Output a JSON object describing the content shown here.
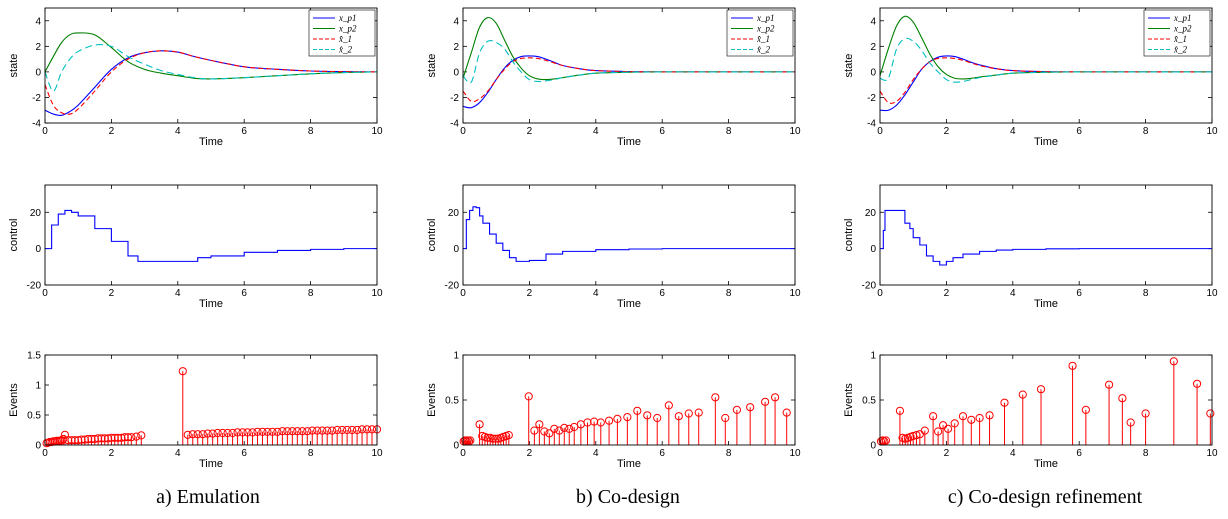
{
  "colors": {
    "xp1": "#0000ff",
    "xp2": "#007f00",
    "xhat1": "#ff0000",
    "xhat2": "#00bfbf",
    "events": "#ff0000",
    "control": "#0000ff"
  },
  "panels": [
    {
      "caption": "a) Emulation"
    },
    {
      "caption": "b) Co-design"
    },
    {
      "caption": "c) Co-design refinement"
    }
  ],
  "chart_data": [
    {
      "type": "line",
      "xlabel": "Time",
      "ylabel": "state",
      "xlim": [
        0,
        10
      ],
      "ylim": [
        -4,
        5
      ],
      "xticks": [
        0,
        2,
        4,
        6,
        8,
        10
      ],
      "yticks": [
        -4,
        -2,
        0,
        2,
        4
      ],
      "legend": [
        "x_p1",
        "x_p2",
        "x̂_1",
        "x̂_2"
      ],
      "legend_position": "top-right",
      "x": [
        0,
        0.25,
        0.5,
        0.75,
        1,
        1.5,
        2,
        2.5,
        3,
        3.5,
        4,
        4.5,
        5,
        6,
        7,
        8,
        9,
        10
      ],
      "series": [
        {
          "name": "x_p1",
          "values": [
            -3,
            -3.3,
            -3.4,
            -3.1,
            -2.6,
            -1.2,
            0.2,
            1.1,
            1.5,
            1.65,
            1.55,
            1.2,
            0.9,
            0.4,
            0.2,
            0.07,
            0.02,
            0
          ]
        },
        {
          "name": "x_p2",
          "values": [
            0,
            1.2,
            2.3,
            2.9,
            3.05,
            2.9,
            1.9,
            0.8,
            0.2,
            -0.1,
            -0.3,
            -0.5,
            -0.55,
            -0.45,
            -0.3,
            -0.15,
            -0.05,
            0
          ]
        },
        {
          "name": "x̂_1",
          "values": [
            -1,
            -2.6,
            -3.2,
            -3.3,
            -2.9,
            -1.5,
            0,
            1,
            1.5,
            1.65,
            1.55,
            1.2,
            0.9,
            0.4,
            0.2,
            0.07,
            0.02,
            0
          ]
        },
        {
          "name": "x̂_2",
          "values": [
            0,
            -1.5,
            0,
            1,
            1.6,
            2.1,
            2,
            1.2,
            0.6,
            0.1,
            -0.2,
            -0.45,
            -0.55,
            -0.45,
            -0.3,
            -0.15,
            -0.05,
            0
          ]
        }
      ]
    },
    {
      "type": "line",
      "xlabel": "Time",
      "ylabel": "control",
      "xlim": [
        0,
        10
      ],
      "ylim": [
        -20,
        35
      ],
      "xticks": [
        0,
        2,
        4,
        6,
        8,
        10
      ],
      "yticks": [
        -20,
        0,
        20
      ],
      "x": [
        0,
        0.2,
        0.4,
        0.6,
        0.8,
        1,
        1.5,
        2,
        2.5,
        2.8,
        3,
        3.5,
        4,
        4.3,
        4.6,
        5,
        6,
        7,
        8,
        9,
        10
      ],
      "series": [
        {
          "name": "",
          "values": [
            0,
            13,
            19,
            21,
            20,
            18,
            11,
            4,
            -4,
            -7,
            -7,
            -7,
            -7,
            -7,
            -5,
            -4,
            -2,
            -1,
            -0.4,
            0,
            0
          ]
        }
      ]
    },
    {
      "type": "bar",
      "xlabel": "Time",
      "ylabel": "Events",
      "xlim": [
        0,
        10
      ],
      "ylim": [
        0,
        1.5
      ],
      "xticks": [
        0,
        2,
        4,
        6,
        8,
        10
      ],
      "yticks": [
        0,
        0.5,
        1,
        1.5
      ],
      "x": [
        0.05,
        0.1,
        0.15,
        0.2,
        0.25,
        0.3,
        0.35,
        0.4,
        0.45,
        0.5,
        0.55,
        0.6,
        0.7,
        0.8,
        0.9,
        1,
        1.1,
        1.2,
        1.3,
        1.4,
        1.5,
        1.6,
        1.7,
        1.8,
        1.9,
        2,
        2.1,
        2.2,
        2.3,
        2.4,
        2.5,
        2.6,
        2.75,
        2.9,
        4.15,
        4.3,
        4.45,
        4.6,
        4.75,
        4.9,
        5.05,
        5.2,
        5.35,
        5.5,
        5.65,
        5.8,
        5.95,
        6.1,
        6.25,
        6.4,
        6.55,
        6.7,
        6.85,
        7,
        7.15,
        7.3,
        7.45,
        7.6,
        7.75,
        7.9,
        8.05,
        8.2,
        8.35,
        8.5,
        8.65,
        8.8,
        8.95,
        9.1,
        9.25,
        9.4,
        9.55,
        9.7,
        9.85,
        10
      ],
      "values": [
        0.03,
        0.04,
        0.05,
        0.05,
        0.06,
        0.06,
        0.07,
        0.07,
        0.07,
        0.08,
        0.1,
        0.17,
        0.08,
        0.08,
        0.08,
        0.08,
        0.09,
        0.09,
        0.1,
        0.1,
        0.1,
        0.11,
        0.11,
        0.11,
        0.11,
        0.12,
        0.12,
        0.12,
        0.12,
        0.13,
        0.13,
        0.13,
        0.14,
        0.16,
        1.23,
        0.17,
        0.18,
        0.18,
        0.18,
        0.19,
        0.19,
        0.2,
        0.2,
        0.2,
        0.2,
        0.21,
        0.21,
        0.21,
        0.21,
        0.22,
        0.22,
        0.22,
        0.22,
        0.22,
        0.23,
        0.23,
        0.23,
        0.23,
        0.23,
        0.23,
        0.24,
        0.24,
        0.24,
        0.24,
        0.24,
        0.25,
        0.25,
        0.25,
        0.25,
        0.25,
        0.26,
        0.26,
        0.26,
        0.26
      ]
    },
    {
      "type": "line",
      "xlabel": "Time",
      "ylabel": "state",
      "xlim": [
        0,
        10
      ],
      "ylim": [
        -4,
        5
      ],
      "xticks": [
        0,
        2,
        4,
        6,
        8,
        10
      ],
      "yticks": [
        -4,
        -2,
        0,
        2,
        4
      ],
      "legend": [
        "x_p1",
        "x_p2",
        "x̂_1",
        "x̂_2"
      ],
      "legend_position": "top-right",
      "x": [
        0,
        0.25,
        0.5,
        0.75,
        1,
        1.25,
        1.5,
        1.75,
        2,
        2.25,
        2.5,
        2.75,
        3,
        3.5,
        4,
        5,
        6,
        7,
        8,
        10
      ],
      "series": [
        {
          "name": "x_p1",
          "values": [
            -2.7,
            -2.8,
            -2.4,
            -1.6,
            -0.6,
            0.3,
            0.9,
            1.2,
            1.25,
            1.2,
            1,
            0.75,
            0.5,
            0.25,
            0.1,
            0.02,
            0,
            0,
            0,
            0
          ]
        },
        {
          "name": "x_p2",
          "values": [
            -0.5,
            1.5,
            3.5,
            4.25,
            3.8,
            2.5,
            1.2,
            0.3,
            -0.3,
            -0.55,
            -0.6,
            -0.55,
            -0.45,
            -0.25,
            -0.1,
            -0.02,
            0,
            0,
            0,
            0
          ]
        },
        {
          "name": "x̂_1",
          "values": [
            -1.5,
            -2.3,
            -2.1,
            -1.5,
            -0.6,
            0.2,
            0.8,
            1.05,
            1.1,
            1.05,
            0.9,
            0.7,
            0.5,
            0.25,
            0.1,
            0.02,
            0,
            0,
            0,
            0
          ]
        },
        {
          "name": "x̂_2",
          "values": [
            -0.3,
            -0.8,
            1.5,
            2.4,
            2.3,
            1.8,
            0.8,
            0,
            -0.6,
            -0.75,
            -0.7,
            -0.6,
            -0.45,
            -0.25,
            -0.1,
            -0.02,
            0,
            0,
            0,
            0
          ]
        }
      ]
    },
    {
      "type": "line",
      "xlabel": "Time",
      "ylabel": "control",
      "xlim": [
        0,
        10
      ],
      "ylim": [
        -20,
        35
      ],
      "xticks": [
        0,
        2,
        4,
        6,
        8,
        10
      ],
      "yticks": [
        -20,
        0,
        20
      ],
      "x": [
        0,
        0.1,
        0.2,
        0.3,
        0.4,
        0.5,
        0.6,
        0.8,
        1,
        1.2,
        1.4,
        1.6,
        1.8,
        2,
        2.5,
        3,
        4,
        5,
        6,
        8,
        10
      ],
      "series": [
        {
          "name": "",
          "values": [
            0,
            16,
            21,
            23,
            22.5,
            18,
            14,
            8,
            3,
            -1,
            -5,
            -7,
            -7,
            -6.5,
            -3,
            -1.5,
            -0.6,
            -0.2,
            0,
            0,
            0
          ]
        }
      ]
    },
    {
      "type": "bar",
      "xlabel": "Time",
      "ylabel": "Events",
      "xlim": [
        0,
        10
      ],
      "ylim": [
        0,
        1
      ],
      "xticks": [
        0,
        2,
        4,
        6,
        8,
        10
      ],
      "yticks": [
        0,
        0.5,
        1
      ],
      "x": [
        0.02,
        0.06,
        0.1,
        0.14,
        0.18,
        0.22,
        0.5,
        0.58,
        0.66,
        0.74,
        0.82,
        0.9,
        0.98,
        1.06,
        1.14,
        1.22,
        1.3,
        1.38,
        1.98,
        2.15,
        2.3,
        2.45,
        2.6,
        2.75,
        2.9,
        3.05,
        3.2,
        3.35,
        3.55,
        3.75,
        3.95,
        4.15,
        4.4,
        4.65,
        4.95,
        5.25,
        5.55,
        5.85,
        6.2,
        6.5,
        6.8,
        7.1,
        7.6,
        7.9,
        8.25,
        8.65,
        9.1,
        9.4,
        9.75
      ],
      "values": [
        0.04,
        0.05,
        0.04,
        0.05,
        0.04,
        0.05,
        0.23,
        0.1,
        0.09,
        0.08,
        0.08,
        0.07,
        0.07,
        0.07,
        0.08,
        0.09,
        0.1,
        0.11,
        0.54,
        0.16,
        0.23,
        0.15,
        0.13,
        0.18,
        0.16,
        0.19,
        0.18,
        0.2,
        0.23,
        0.25,
        0.26,
        0.25,
        0.27,
        0.29,
        0.31,
        0.38,
        0.33,
        0.3,
        0.44,
        0.32,
        0.35,
        0.36,
        0.53,
        0.3,
        0.39,
        0.42,
        0.48,
        0.53,
        0.36
      ]
    },
    {
      "type": "line",
      "xlabel": "Time",
      "ylabel": "state",
      "xlim": [
        0,
        10
      ],
      "ylim": [
        -4,
        5
      ],
      "xticks": [
        0,
        2,
        4,
        6,
        8,
        10
      ],
      "yticks": [
        -4,
        -2,
        0,
        2,
        4
      ],
      "legend": [
        "x_p1",
        "x_p2",
        "x̂_1",
        "x̂_2"
      ],
      "legend_position": "top-right",
      "x": [
        0,
        0.25,
        0.5,
        0.75,
        1,
        1.25,
        1.5,
        1.75,
        2,
        2.25,
        2.5,
        2.75,
        3,
        3.5,
        4,
        5,
        6,
        7,
        8,
        10
      ],
      "series": [
        {
          "name": "x_p1",
          "values": [
            -3,
            -3,
            -2.6,
            -1.8,
            -0.8,
            0.2,
            0.8,
            1.15,
            1.25,
            1.2,
            1,
            0.75,
            0.55,
            0.25,
            0.1,
            0.02,
            0,
            0,
            0,
            0
          ]
        },
        {
          "name": "x_p2",
          "values": [
            -0.3,
            1.8,
            3.6,
            4.35,
            3.9,
            2.7,
            1.4,
            0.4,
            -0.2,
            -0.5,
            -0.55,
            -0.5,
            -0.4,
            -0.25,
            -0.1,
            -0.02,
            0,
            0,
            0,
            0
          ]
        },
        {
          "name": "x̂_1",
          "values": [
            -1.5,
            -2.4,
            -2.3,
            -1.6,
            -0.6,
            0.2,
            0.8,
            1.05,
            1.1,
            1.05,
            0.9,
            0.7,
            0.5,
            0.25,
            0.1,
            0.02,
            0,
            0,
            0,
            0
          ]
        },
        {
          "name": "x̂_2",
          "values": [
            -0.5,
            -0.5,
            1.8,
            2.6,
            2.4,
            1.7,
            0.7,
            0,
            -0.6,
            -0.8,
            -0.75,
            -0.6,
            -0.45,
            -0.25,
            -0.1,
            -0.02,
            0,
            0,
            0,
            0
          ]
        }
      ]
    },
    {
      "type": "line",
      "xlabel": "Time",
      "ylabel": "control",
      "xlim": [
        0,
        10
      ],
      "ylim": [
        -20,
        35
      ],
      "xticks": [
        0,
        2,
        4,
        6,
        8,
        10
      ],
      "yticks": [
        -20,
        0,
        20
      ],
      "x": [
        0,
        0.1,
        0.15,
        0.3,
        0.6,
        0.75,
        0.9,
        1,
        1.2,
        1.4,
        1.6,
        1.8,
        2,
        2.2,
        2.5,
        3,
        3.5,
        4,
        5,
        6,
        7,
        10
      ],
      "series": [
        {
          "name": "",
          "values": [
            0,
            10,
            21,
            21,
            21,
            14,
            11,
            6,
            2,
            -4,
            -7,
            -9,
            -7,
            -5,
            -3,
            -1.5,
            -0.8,
            -0.4,
            -0.1,
            0,
            0,
            0
          ]
        }
      ]
    },
    {
      "type": "bar",
      "xlabel": "Time",
      "ylabel": "Events",
      "xlim": [
        0,
        10
      ],
      "ylim": [
        0,
        1
      ],
      "xticks": [
        0,
        2,
        4,
        6,
        8,
        10
      ],
      "yticks": [
        0,
        0.5,
        1
      ],
      "x": [
        0.03,
        0.08,
        0.13,
        0.18,
        0.6,
        0.68,
        0.76,
        0.84,
        0.92,
        1,
        1.1,
        1.2,
        1.35,
        1.6,
        1.75,
        1.9,
        2.05,
        2.25,
        2.5,
        2.75,
        3,
        3.3,
        3.75,
        4.3,
        4.85,
        5.8,
        6.2,
        6.9,
        7.3,
        7.55,
        8,
        8.85,
        9.55,
        9.95
      ],
      "values": [
        0.04,
        0.05,
        0.04,
        0.05,
        0.38,
        0.08,
        0.07,
        0.08,
        0.09,
        0.1,
        0.11,
        0.12,
        0.16,
        0.32,
        0.15,
        0.22,
        0.18,
        0.24,
        0.32,
        0.28,
        0.3,
        0.33,
        0.47,
        0.56,
        0.62,
        0.88,
        0.39,
        0.67,
        0.52,
        0.25,
        0.35,
        0.93,
        0.68,
        0.35
      ]
    }
  ]
}
